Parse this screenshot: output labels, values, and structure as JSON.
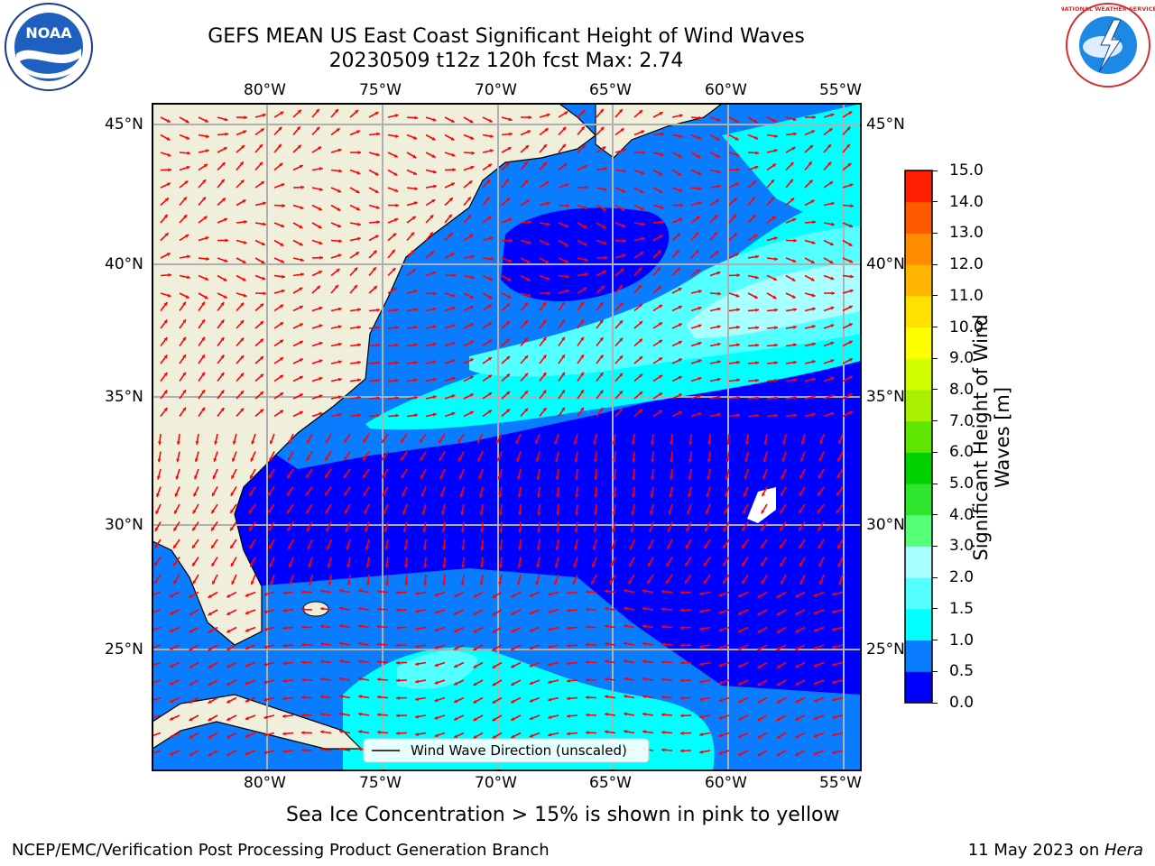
{
  "header": {
    "title_line1": "GEFS MEAN US East Coast Significant Height of Wind Waves",
    "title_line2": "20230509 t12z 120h fcst   Max: 2.74",
    "noaa_logo_text": "NOAA",
    "nws_logo_text": "NATIONAL WEATHER SERVICE"
  },
  "map": {
    "lon_labels": [
      "80°W",
      "75°W",
      "70°W",
      "65°W",
      "60°W",
      "55°W"
    ],
    "lat_labels": [
      "45°N",
      "40°N",
      "35°N",
      "30°N",
      "25°N"
    ],
    "legend_label": "Wind Wave Direction (unscaled)",
    "arrow_color": "#ff0000",
    "land_color": "#efefdc"
  },
  "colorbar": {
    "label_line1": "Significant Height of Wind",
    "label_line2": "Waves [m]",
    "ticks": [
      "0.0",
      "0.5",
      "1.0",
      "1.5",
      "2.0",
      "3.0",
      "4.0",
      "5.0",
      "6.0",
      "7.0",
      "8.0",
      "9.0",
      "10.0",
      "11.0",
      "12.0",
      "13.0",
      "14.0",
      "15.0"
    ],
    "colors": [
      "#0000ff",
      "#0a7dff",
      "#00ffff",
      "#54ffff",
      "#a8ffff",
      "#55ff78",
      "#2ee62e",
      "#00d200",
      "#5ee600",
      "#a8f000",
      "#d2ff00",
      "#ffff00",
      "#ffe100",
      "#ffb400",
      "#ff8c00",
      "#ff5a00",
      "#ff1e00",
      "#ff0000"
    ]
  },
  "note": "Sea Ice Concentration > 15% is shown in pink to yellow",
  "footer": {
    "left": "NCEP/EMC/Verification Post Processing Product Generation Branch",
    "right_date": "11 May 2023 on ",
    "right_host": "Hera"
  }
}
